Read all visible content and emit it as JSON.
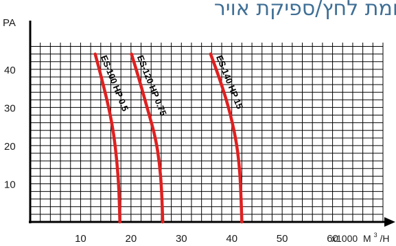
{
  "chart_data": {
    "type": "line",
    "title": "עקומת לחץ/ספיקת אויר",
    "ylabel": "PA",
    "xlabel_prefix": "x1000",
    "xlabel_unit": "M",
    "xlabel_sup": "3",
    "xlabel_suffix": "/H",
    "xlim": [
      0,
      70
    ],
    "ylim": [
      0,
      47
    ],
    "xticks": [
      10,
      20,
      30,
      40,
      50,
      60
    ],
    "yticks": [
      10,
      20,
      30,
      40
    ],
    "grid": true,
    "line_color": "#e02020",
    "series": [
      {
        "name": "ES-100 HP 0.5",
        "points": [
          [
            12.9,
            44
          ],
          [
            14.2,
            37.5
          ],
          [
            15.6,
            30
          ],
          [
            16.6,
            23
          ],
          [
            17.2,
            16
          ],
          [
            17.6,
            9
          ],
          [
            17.8,
            0
          ]
        ]
      },
      {
        "name": "ES-120 HP 0.75",
        "points": [
          [
            20.1,
            44
          ],
          [
            21.6,
            37.5
          ],
          [
            23.2,
            30
          ],
          [
            24.9,
            22
          ],
          [
            25.7,
            15
          ],
          [
            26.1,
            8
          ],
          [
            26.3,
            0
          ]
        ]
      },
      {
        "name": "ES-140 HP 15",
        "points": [
          [
            35.8,
            44
          ],
          [
            37.6,
            37.5
          ],
          [
            39.4,
            30
          ],
          [
            40.8,
            22
          ],
          [
            41.5,
            15
          ],
          [
            41.8,
            8
          ],
          [
            42.0,
            0
          ]
        ]
      }
    ]
  }
}
